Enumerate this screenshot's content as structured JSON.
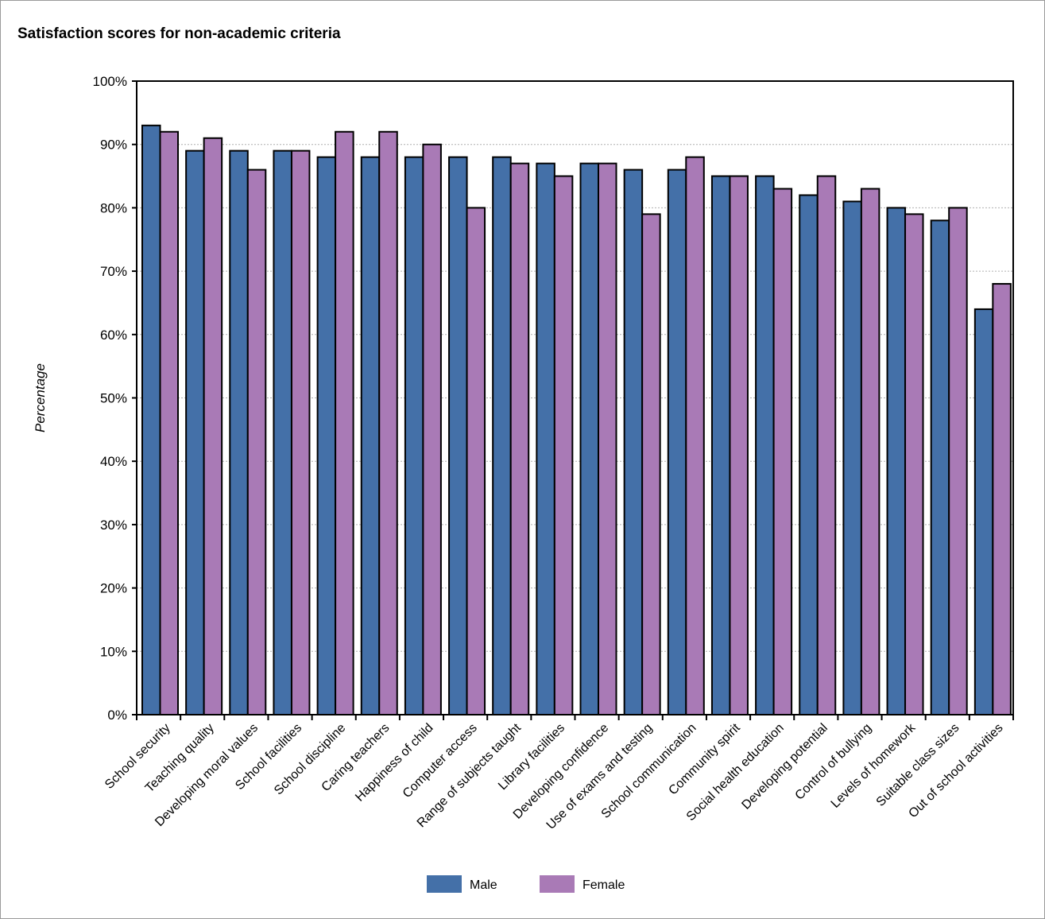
{
  "chart_data": {
    "type": "bar",
    "title": "Satisfaction scores for non-academic criteria",
    "xlabel": "",
    "ylabel": "Percentage",
    "ylim": [
      0,
      100
    ],
    "yticks": [
      "0%",
      "10%",
      "20%",
      "30%",
      "40%",
      "50%",
      "60%",
      "70%",
      "80%",
      "90%",
      "100%"
    ],
    "grid": "horizontal dotted",
    "legend_position": "bottom-center",
    "categories": [
      "School security",
      "Teaching quality",
      "Developing moral values",
      "School facilities",
      "School discipline",
      "Caring teachers",
      "Happiness of child",
      "Computer access",
      "Range of subjects taught",
      "Library facilities",
      "Developing confidence",
      "Use of exams and testing",
      "School communication",
      "Community spirit",
      "Social health education",
      "Developing potential",
      "Control of bullying",
      "Levels of homework",
      "Suitable class sizes",
      "Out of school activities"
    ],
    "series": [
      {
        "name": "Male",
        "color": "#4470a8",
        "values": [
          93,
          89,
          89,
          89,
          88,
          88,
          88,
          88,
          88,
          87,
          87,
          86,
          86,
          85,
          85,
          82,
          81,
          80,
          78,
          64
        ]
      },
      {
        "name": "Female",
        "color": "#a97ab6",
        "values": [
          92,
          91,
          86,
          89,
          92,
          92,
          90,
          80,
          87,
          85,
          87,
          79,
          88,
          85,
          83,
          85,
          83,
          79,
          80,
          68
        ]
      }
    ]
  }
}
